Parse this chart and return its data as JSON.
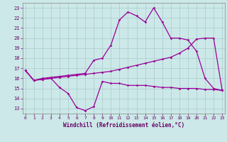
{
  "xlabel": "Windchill (Refroidissement éolien,°C)",
  "bg_color": "#cce8e8",
  "grid_color": "#aacccc",
  "line_color": "#990099",
  "x_ticks": [
    0,
    1,
    2,
    3,
    4,
    5,
    6,
    7,
    8,
    9,
    10,
    11,
    12,
    13,
    14,
    15,
    16,
    17,
    18,
    19,
    20,
    21,
    22,
    23
  ],
  "y_ticks": [
    13,
    14,
    15,
    16,
    17,
    18,
    19,
    20,
    21,
    22,
    23
  ],
  "xlim": [
    -0.3,
    23.3
  ],
  "ylim": [
    12.5,
    23.5
  ],
  "line1_x": [
    0,
    1,
    2,
    3,
    4,
    5,
    6,
    7,
    8,
    9,
    10,
    11,
    12,
    13,
    14,
    15,
    16,
    17,
    18,
    19,
    20,
    21,
    22,
    23
  ],
  "line1_y": [
    16.8,
    15.8,
    15.9,
    16.0,
    15.1,
    14.5,
    13.1,
    12.8,
    13.2,
    15.7,
    15.5,
    15.5,
    15.3,
    15.3,
    15.3,
    15.2,
    15.1,
    15.1,
    15.0,
    15.0,
    15.0,
    14.9,
    14.9,
    14.8
  ],
  "line2_x": [
    0,
    1,
    2,
    3,
    4,
    5,
    6,
    7,
    8,
    9,
    10,
    11,
    12,
    13,
    14,
    15,
    16,
    17,
    18,
    19,
    20,
    21,
    22,
    23
  ],
  "line2_y": [
    16.8,
    15.8,
    16.0,
    16.1,
    16.2,
    16.3,
    16.4,
    16.5,
    17.8,
    18.0,
    19.3,
    21.8,
    22.6,
    22.2,
    21.6,
    23.0,
    21.6,
    20.0,
    20.0,
    19.8,
    18.7,
    16.0,
    15.0,
    14.8
  ],
  "line3_x": [
    0,
    1,
    2,
    3,
    4,
    5,
    6,
    7,
    8,
    9,
    10,
    11,
    12,
    13,
    14,
    15,
    16,
    17,
    18,
    19,
    20,
    21,
    22,
    23
  ],
  "line3_y": [
    16.8,
    15.8,
    15.9,
    16.0,
    16.1,
    16.2,
    16.3,
    16.4,
    16.5,
    16.6,
    16.7,
    16.9,
    17.1,
    17.3,
    17.5,
    17.7,
    17.9,
    18.1,
    18.5,
    19.0,
    19.9,
    20.0,
    20.0,
    14.8
  ]
}
